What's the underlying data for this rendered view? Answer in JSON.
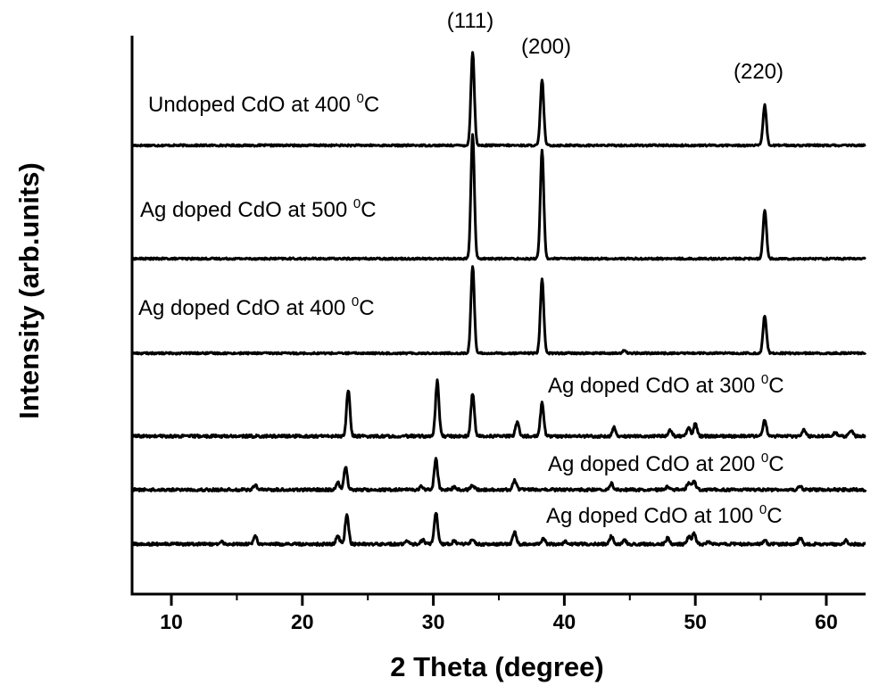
{
  "chart_data": {
    "type": "line",
    "title": "",
    "xlabel": "2 Theta (degree)",
    "ylabel": "Intensity (arb.units)",
    "xlim": [
      7,
      63
    ],
    "xticks": [
      "10",
      "20",
      "30",
      "40",
      "50",
      "60"
    ],
    "grid": false,
    "legend": "none",
    "line_color": "#000000",
    "peak_annotations": [
      {
        "label": "(111)",
        "x": 33.0
      },
      {
        "label": "(200)",
        "x": 38.3
      },
      {
        "label": "(220)",
        "x": 55.3
      }
    ],
    "series": [
      {
        "name": "Undoped CdO at 400 0C",
        "label_text": "Undoped CdO at 400 ",
        "label_sup": "0",
        "label_unit": "C",
        "baseline": 0,
        "peaks": [
          {
            "x": 33.0,
            "h": 105
          },
          {
            "x": 38.3,
            "h": 73
          },
          {
            "x": 55.3,
            "h": 45
          }
        ],
        "noise": 1
      },
      {
        "name": "Ag doped CdO at 500 0C",
        "label_text": "Ag doped CdO at 500 ",
        "label_sup": "0",
        "label_unit": "C",
        "baseline": 0,
        "peaks": [
          {
            "x": 33.0,
            "h": 140
          },
          {
            "x": 38.3,
            "h": 122
          },
          {
            "x": 55.3,
            "h": 55
          }
        ],
        "noise": 1
      },
      {
        "name": "Ag doped CdO at 400 0C",
        "label_text": "Ag doped CdO at 400 ",
        "label_sup": "0",
        "label_unit": "C",
        "baseline": 0,
        "peaks": [
          {
            "x": 33.0,
            "h": 98
          },
          {
            "x": 38.3,
            "h": 84
          },
          {
            "x": 44.6,
            "h": 3
          },
          {
            "x": 55.3,
            "h": 42
          }
        ],
        "noise": 1
      },
      {
        "name": "Ag doped CdO at 300 0C",
        "label_text": "Ag doped CdO at 300 ",
        "label_sup": "0",
        "label_unit": "C",
        "baseline": 0,
        "peaks": [
          {
            "x": 23.5,
            "h": 52
          },
          {
            "x": 30.3,
            "h": 62
          },
          {
            "x": 33.0,
            "h": 48
          },
          {
            "x": 36.4,
            "h": 16
          },
          {
            "x": 38.3,
            "h": 37
          },
          {
            "x": 43.8,
            "h": 10
          },
          {
            "x": 48.1,
            "h": 7
          },
          {
            "x": 49.5,
            "h": 10
          },
          {
            "x": 50.0,
            "h": 14
          },
          {
            "x": 55.3,
            "h": 18
          },
          {
            "x": 58.3,
            "h": 8
          },
          {
            "x": 60.7,
            "h": 4
          },
          {
            "x": 61.9,
            "h": 6
          }
        ],
        "noise": 1.5
      },
      {
        "name": "Ag doped CdO at 200 0C",
        "label_text": "Ag doped CdO at 200 ",
        "label_sup": "0",
        "label_unit": "C",
        "baseline": 0,
        "peaks": [
          {
            "x": 16.4,
            "h": 5
          },
          {
            "x": 22.7,
            "h": 8
          },
          {
            "x": 23.3,
            "h": 26
          },
          {
            "x": 29.1,
            "h": 4
          },
          {
            "x": 30.2,
            "h": 34
          },
          {
            "x": 31.6,
            "h": 3
          },
          {
            "x": 33.0,
            "h": 5
          },
          {
            "x": 36.2,
            "h": 11
          },
          {
            "x": 43.6,
            "h": 7
          },
          {
            "x": 47.9,
            "h": 4
          },
          {
            "x": 49.5,
            "h": 8
          },
          {
            "x": 49.9,
            "h": 10
          },
          {
            "x": 58.0,
            "h": 4
          }
        ],
        "noise": 1.5
      },
      {
        "name": "Ag doped CdO at 100 0C",
        "label_text": "Ag doped CdO at 100 ",
        "label_sup": "0",
        "label_unit": "C",
        "baseline": 0,
        "peaks": [
          {
            "x": 13.8,
            "h": 3
          },
          {
            "x": 16.4,
            "h": 9
          },
          {
            "x": 22.7,
            "h": 10
          },
          {
            "x": 23.4,
            "h": 34
          },
          {
            "x": 28.0,
            "h": 3
          },
          {
            "x": 29.2,
            "h": 5
          },
          {
            "x": 30.2,
            "h": 36
          },
          {
            "x": 31.6,
            "h": 4
          },
          {
            "x": 33.0,
            "h": 6
          },
          {
            "x": 36.2,
            "h": 14
          },
          {
            "x": 38.4,
            "h": 6
          },
          {
            "x": 40.1,
            "h": 3
          },
          {
            "x": 43.6,
            "h": 9
          },
          {
            "x": 44.6,
            "h": 4
          },
          {
            "x": 47.9,
            "h": 7
          },
          {
            "x": 49.5,
            "h": 8
          },
          {
            "x": 49.9,
            "h": 12
          },
          {
            "x": 51.0,
            "h": 3
          },
          {
            "x": 55.3,
            "h": 4
          },
          {
            "x": 58.0,
            "h": 7
          },
          {
            "x": 61.5,
            "h": 4
          }
        ],
        "noise": 1.5
      }
    ]
  }
}
